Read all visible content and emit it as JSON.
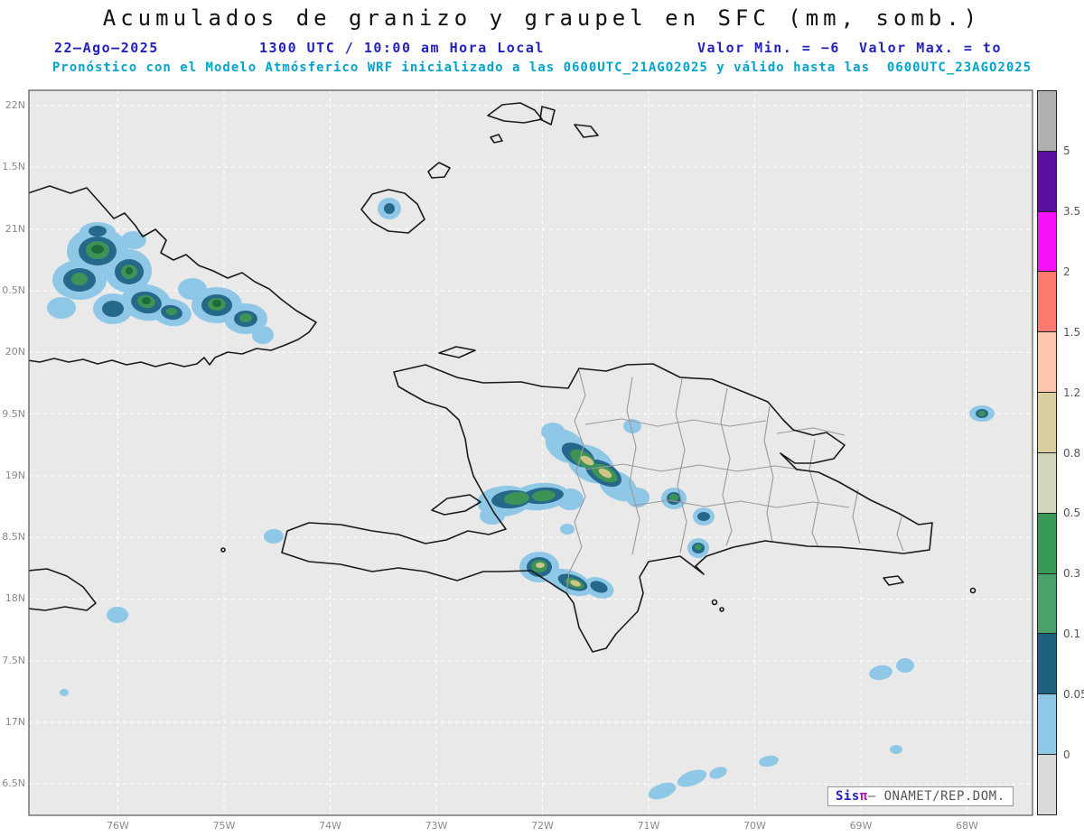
{
  "header": {
    "title": "Acumulados de granizo y graupel en SFC (mm, somb.)",
    "date": "22–Ago–2025",
    "time": "1300 UTC / 10:00 am Hora Local",
    "minmax": "Valor Min. = −6  Valor Max. = to",
    "model_line": "Pronóstico con el Modelo Atmósferico WRF inicializado a las 0600UTC_21AGO2025 y válido hasta las  0600UTC_23AGO2025"
  },
  "map": {
    "y_ticks": [
      "22N",
      "1.5N",
      "21N",
      "0.5N",
      "20N",
      "9.5N",
      "19N",
      "8.5N",
      "18N",
      "7.5N",
      "17N",
      "6.5N"
    ],
    "x_ticks": [
      "76W",
      "75W",
      "74W",
      "73W",
      "72W",
      "71W",
      "70W",
      "69W",
      "68W"
    ],
    "background": "#e9e9e9",
    "gridline_color": "#ffffff",
    "coastline_color": "#1a1a1a",
    "province_color": "#9a9a9a"
  },
  "colorbar": {
    "labels": [
      "5",
      "3.5",
      "2",
      "1.5",
      "1.2",
      "0.8",
      "0.5",
      "0.3",
      "0.1",
      "0.05",
      "0"
    ],
    "segments_top_to_bottom": [
      "#b0b0b0",
      "#5a0f9e",
      "#f711f7",
      "#fa7a6e",
      "#fcc6ad",
      "#d9cf9e",
      "#d0d6ba",
      "#379a55",
      "#49a269",
      "#1f627f",
      "#8fc7e7",
      "#dadada"
    ]
  },
  "shading_levels": {
    "light_blue": "#8fc7e7",
    "teal": "#25688a",
    "green": "#3d9356",
    "dark_green": "#1e6b3a",
    "tan": "#cfc488"
  },
  "attribution": {
    "prefix": "Sis",
    "pi": "π",
    "suffix": "– ONAMET/REP.DOM."
  }
}
